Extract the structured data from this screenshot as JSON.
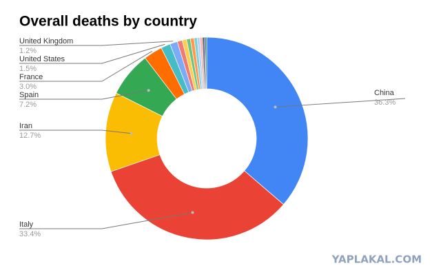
{
  "chart_data": {
    "type": "donut",
    "title": "Overall deaths by country",
    "categories": [
      "China",
      "Italy",
      "Iran",
      "Spain",
      "France",
      "United States",
      "United Kingdom",
      null,
      null,
      null,
      null,
      null,
      null,
      null,
      null,
      null,
      null
    ],
    "values": [
      36.3,
      33.4,
      12.7,
      7.2,
      3.0,
      1.5,
      1.2,
      0.8,
      0.7,
      0.6,
      0.6,
      0.5,
      0.4,
      0.4,
      0.3,
      0.2,
      0.2
    ],
    "value_labels": [
      "36.3%",
      "33.4%",
      "12.7%",
      "7.2%",
      "3.0%",
      "1.5%",
      "1.2%",
      null,
      null,
      null,
      null,
      null,
      null,
      null,
      null,
      null,
      null
    ],
    "colors": [
      "#4285f4",
      "#ea4335",
      "#fbbc04",
      "#34a853",
      "#ff6d01",
      "#46bdc6",
      "#7baaf7",
      "#f07b72",
      "#fcd04f",
      "#71c287",
      "#ff994d",
      "#7ed1d7",
      "#b3cefb",
      "#f7b6b1",
      "#5f6368",
      "#1a237e",
      "#0b8043"
    ],
    "watermark": "YAPLAKAL.COM"
  }
}
